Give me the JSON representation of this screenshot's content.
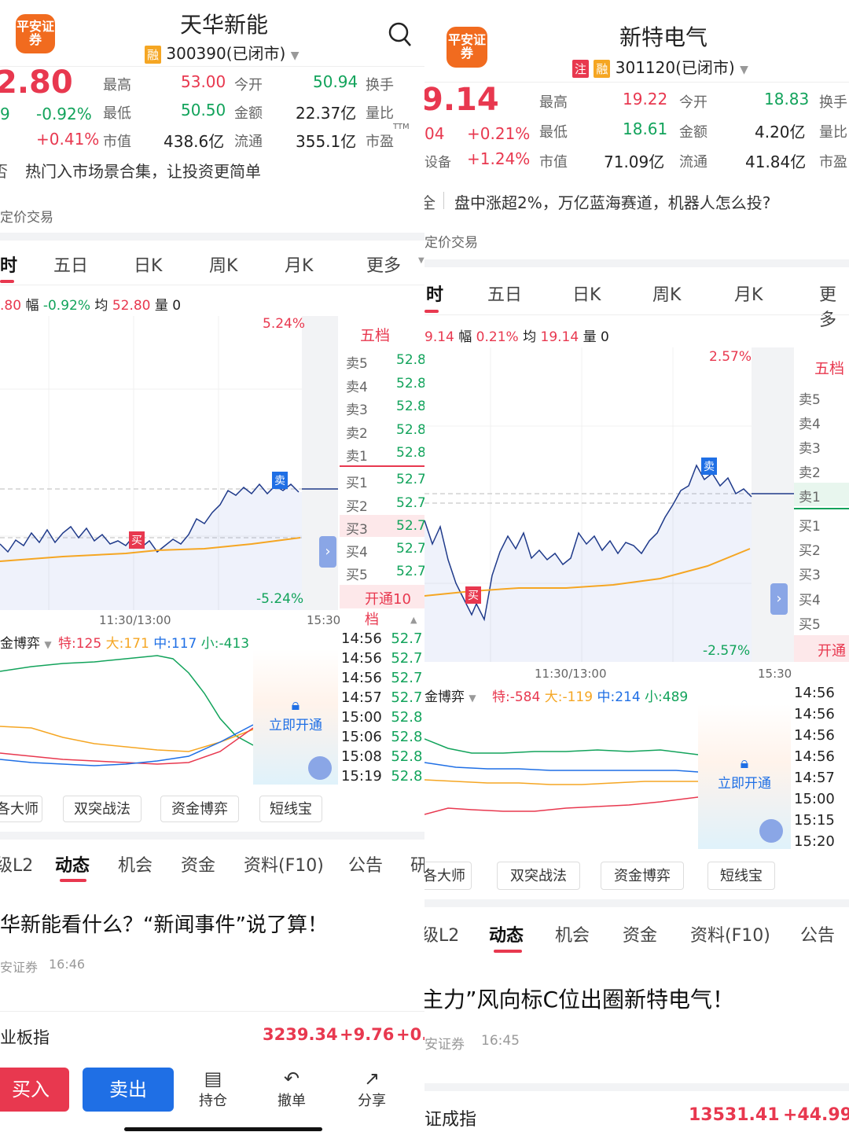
{
  "left": {
    "brand_logo": "平安证券",
    "stock_name": "天华新能",
    "rong_badge": "融",
    "stock_code": "300390(已闭市)",
    "price": "2.80",
    "change_abs": "9",
    "change_pct": "-0.92%",
    "change_pct2": "+0.41%",
    "quote_labels": {
      "high": "最高",
      "low": "最低",
      "mktcap": "市值",
      "open": "今开",
      "amount": "金额",
      "float": "流通",
      "turnover": "换手",
      "ratio": "量比",
      "pe": "市盈"
    },
    "quote_values": {
      "high": "53.00",
      "low": "50.50",
      "mktcap": "438.6亿",
      "open": "50.94",
      "amount": "22.37亿",
      "float": "355.1亿"
    },
    "ttm": "TTM",
    "banner_prefix": "否",
    "banner": "热门入市场景合集，让投资更简单",
    "sub_banner": "定价交易",
    "tabs": [
      "时",
      "五日",
      "日K",
      "周K",
      "月K",
      "更多"
    ],
    "info_line": {
      "price": ".80",
      "fu_label": "幅",
      "fu": "-0.92%",
      "jun_label": "均",
      "jun": "52.80",
      "liang_label": "量",
      "liang": "0"
    },
    "pct_top": "5.24%",
    "pct_bottom": "-5.24%",
    "time_mid": "11:30/13:00",
    "time_end": "15:30",
    "wudang_title": "五档",
    "sell_labels": [
      "卖5",
      "卖4",
      "卖3",
      "卖2",
      "卖1"
    ],
    "sell_prices": [
      "52.8",
      "52.8",
      "52.8",
      "52.8",
      "52.8"
    ],
    "buy_labels": [
      "买1",
      "买2",
      "买3",
      "买4",
      "买5"
    ],
    "buy_prices": [
      "52.7",
      "52.7",
      "52.7",
      "52.7",
      "52.7"
    ],
    "open10": "开通10档",
    "buy_marker": "买",
    "sell_marker": "卖",
    "capital_game_label": "金博弈",
    "capital_stats": {
      "te_label": "特:",
      "te": "125",
      "da_label": "大:",
      "da": "171",
      "zhong_label": "中:",
      "zhong": "117",
      "xiao_label": "小:",
      "xiao": "-413"
    },
    "unlock_label": "立即开通",
    "trades": [
      {
        "time": "14:56",
        "price": "52.7"
      },
      {
        "time": "14:56",
        "price": "52.7"
      },
      {
        "time": "14:56",
        "price": "52.7"
      },
      {
        "time": "14:57",
        "price": "52.7"
      },
      {
        "time": "15:00",
        "price": "52.8"
      },
      {
        "time": "15:06",
        "price": "52.8"
      },
      {
        "time": "15:08",
        "price": "52.8"
      },
      {
        "time": "15:19",
        "price": "52.8"
      }
    ],
    "tool_buttons": [
      "各大师",
      "双突战法",
      "资金博弈",
      "短线宝"
    ],
    "news_tabs": [
      "级L2",
      "动态",
      "机会",
      "资金",
      "资料(F10)",
      "公告",
      "研"
    ],
    "headline": "华新能看什么？“新闻事件”说了算！",
    "headline_source": "安证券",
    "headline_time": "16:46",
    "index_name": "业板指",
    "index_value": "3239.34",
    "index_change": "+9.76",
    "index_pct": "+0.",
    "buy_btn": "买入",
    "sell_btn": "卖出",
    "hold_label": "持仓",
    "cancel_label": "撤单",
    "share_label": "分享"
  },
  "right": {
    "brand_logo": "平安证券",
    "stock_name": "新特电气",
    "zhu_badge": "注",
    "rong_badge": "融",
    "stock_code": "301120(已闭市)",
    "price": "9.14",
    "change_abs": "04",
    "change_pct": "+0.21%",
    "sector_label": "设备",
    "sector_pct": "+1.24%",
    "quote_labels": {
      "high": "最高",
      "low": "最低",
      "mktcap": "市值",
      "open": "今开",
      "amount": "金额",
      "float": "流通",
      "turnover": "换手",
      "ratio": "量比",
      "pe": "市盈"
    },
    "quote_values": {
      "high": "19.22",
      "low": "18.61",
      "mktcap": "71.09亿",
      "open": "18.83",
      "amount": "4.20亿",
      "float": "41.84亿"
    },
    "banner_prefix": "全",
    "banner": "盘中涨超2%，万亿蓝海赛道，机器人怎么投?",
    "sub_banner": "定价交易",
    "tabs": [
      "时",
      "五日",
      "日K",
      "周K",
      "月K",
      "更多"
    ],
    "info_line": {
      "price": "9.14",
      "fu_label": "幅",
      "fu": "0.21%",
      "jun_label": "均",
      "jun": "19.14",
      "liang_label": "量",
      "liang": "0"
    },
    "pct_top": "2.57%",
    "pct_bottom": "-2.57%",
    "time_mid": "11:30/13:00",
    "time_end": "15:30",
    "wudang_title": "五档",
    "sell_labels": [
      "卖5",
      "卖4",
      "卖3",
      "卖2",
      "卖1"
    ],
    "buy_labels": [
      "买1",
      "买2",
      "买3",
      "买4",
      "买5"
    ],
    "open_label": "开通",
    "buy_marker": "买",
    "sell_marker": "卖",
    "capital_game_label": "金博弈",
    "capital_stats": {
      "te_label": "特:",
      "te": "-584",
      "da_label": "大:",
      "da": "-119",
      "zhong_label": "中:",
      "zhong": "214",
      "xiao_label": "小:",
      "xiao": "489"
    },
    "unlock_label": "立即开通",
    "trade_times": [
      "14:56",
      "14:56",
      "14:56",
      "14:56",
      "14:57",
      "15:00",
      "15:15",
      "15:20"
    ],
    "tool_buttons": [
      "各大师",
      "双突战法",
      "资金博弈",
      "短线宝"
    ],
    "news_tabs": [
      "级L2",
      "动态",
      "机会",
      "资金",
      "资料(F10)",
      "公告"
    ],
    "headline": "主力”风向标C位出圈新特电气！",
    "headline_source": "安证券",
    "headline_time": "16:45",
    "index_name": "证成指",
    "index_value": "13531.41",
    "index_change": "+44.99"
  },
  "colors": {
    "up": "#e8384f",
    "down": "#12a35b",
    "brand": "#f16b1f",
    "sell_blue": "#1f6fe5",
    "avg_line": "#f5a623",
    "price_line": "#1f3a8a"
  }
}
